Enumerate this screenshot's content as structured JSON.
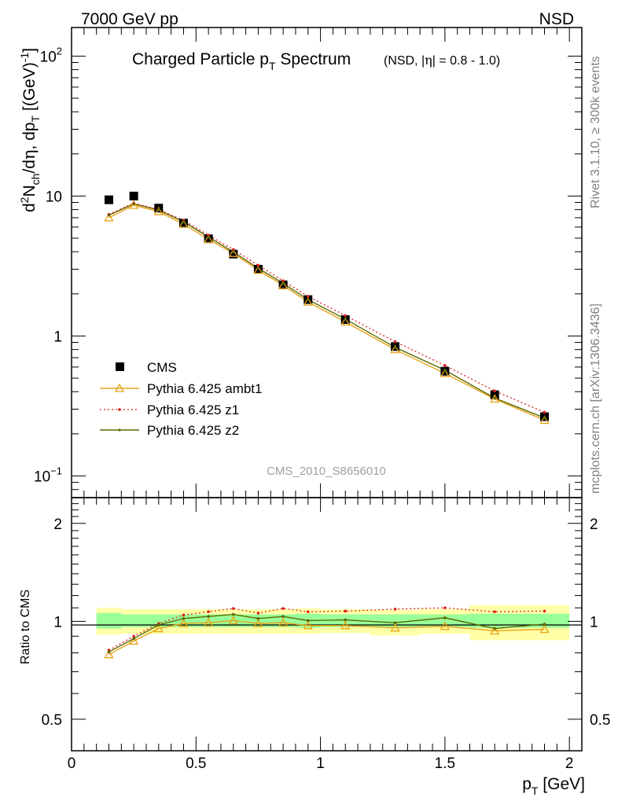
{
  "header": {
    "left": "7000 GeV pp",
    "right": "NSD"
  },
  "title": {
    "main_a": "Charged Particle p",
    "main_sub": "T",
    "main_b": " Spectrum",
    "qual_a": "(NSD, |",
    "qual_eta": "η",
    "qual_b": "| = 0.8 - 1.0)"
  },
  "side": {
    "rivet": "Rivet 3.1.10, ≥ 300k events",
    "mcplots": "mcplots.cern.ch [arXiv:1306.3436]"
  },
  "watermark": "CMS_2010_S8656010",
  "axes": {
    "ylabel": "d²N_ch/dη dp_T [(GeV)⁻¹]",
    "xlabel": "p_T [GeV]",
    "ratio_ylabel": "Ratio to CMS",
    "main_yticks": [
      {
        "value": 100,
        "mant": "10",
        "exp": "2"
      },
      {
        "value": 10,
        "mant": "10",
        "exp": ""
      },
      {
        "value": 1,
        "mant": "1",
        "exp": ""
      },
      {
        "value": 0.1,
        "mant": "10",
        "exp": "−1"
      }
    ],
    "xticks": [
      "0",
      "0.5",
      "1",
      "1.5",
      "2"
    ],
    "ratio_yticks": [
      "0.5",
      "1",
      "2"
    ]
  },
  "chart_data": {
    "type": "line",
    "x": [
      0.15,
      0.25,
      0.35,
      0.45,
      0.55,
      0.65,
      0.75,
      0.85,
      0.95,
      1.1,
      1.3,
      1.5,
      1.7,
      1.9
    ],
    "xlim": [
      0,
      2.05
    ],
    "ylim": [
      0.07,
      160
    ],
    "ylog": true,
    "ratio_ylim": [
      0.4,
      2.4
    ],
    "ratio_ylog": true,
    "series": [
      {
        "name": "CMS",
        "style": "data",
        "color": "#000000",
        "values": [
          9.4,
          10.0,
          8.2,
          6.4,
          4.95,
          3.85,
          3.0,
          2.32,
          1.82,
          1.31,
          0.84,
          0.56,
          0.38,
          0.265
        ]
      },
      {
        "name": "Pythia 6.425 ambt1",
        "style": "ambt1",
        "color": "#e8a317",
        "values": [
          7.0,
          8.6,
          7.75,
          6.3,
          4.9,
          3.9,
          2.95,
          2.3,
          1.75,
          1.26,
          0.8,
          0.54,
          0.355,
          0.25
        ]
      },
      {
        "name": "Pythia 6.425 z1",
        "style": "z1",
        "color": "#e02020",
        "values": [
          7.4,
          8.9,
          8.0,
          6.7,
          5.25,
          4.15,
          3.2,
          2.48,
          1.92,
          1.4,
          0.91,
          0.615,
          0.405,
          0.285
        ]
      },
      {
        "name": "Pythia 6.425 z2",
        "style": "z2",
        "color": "#5a6a00",
        "values": [
          7.3,
          8.8,
          7.95,
          6.55,
          5.1,
          3.98,
          3.05,
          2.38,
          1.82,
          1.32,
          0.83,
          0.57,
          0.36,
          0.26
        ]
      }
    ],
    "ratios": [
      {
        "name": "Pythia 6.425 ambt1",
        "values": [
          0.79,
          0.87,
          0.95,
          0.985,
          0.99,
          1.005,
          0.985,
          0.99,
          0.97,
          0.97,
          0.955,
          0.965,
          0.935,
          0.945
        ]
      },
      {
        "name": "Pythia 6.425 z1",
        "values": [
          0.815,
          0.9,
          0.985,
          1.045,
          1.07,
          1.095,
          1.06,
          1.095,
          1.07,
          1.075,
          1.09,
          1.1,
          1.07,
          1.075
        ]
      },
      {
        "name": "Pythia 6.425 z2",
        "values": [
          0.805,
          0.885,
          0.975,
          1.02,
          1.035,
          1.05,
          1.02,
          1.035,
          1.005,
          1.01,
          0.99,
          1.025,
          0.95,
          0.98
        ]
      }
    ],
    "bands": [
      {
        "x0": 0.1,
        "x1": 0.2,
        "inner": [
          0.95,
          1.06
        ],
        "outer": [
          0.91,
          1.1
        ]
      },
      {
        "x0": 0.2,
        "x1": 0.9,
        "inner": [
          0.96,
          1.05
        ],
        "outer": [
          0.915,
          1.09
        ]
      },
      {
        "x0": 0.9,
        "x1": 1.0,
        "inner": [
          0.955,
          1.055
        ],
        "outer": [
          0.915,
          1.095
        ]
      },
      {
        "x0": 1.0,
        "x1": 1.2,
        "inner": [
          0.96,
          1.05
        ],
        "outer": [
          0.92,
          1.09
        ]
      },
      {
        "x0": 1.2,
        "x1": 1.4,
        "inner": [
          0.96,
          1.05
        ],
        "outer": [
          0.905,
          1.085
        ]
      },
      {
        "x0": 1.4,
        "x1": 1.6,
        "inner": [
          0.96,
          1.05
        ],
        "outer": [
          0.915,
          1.09
        ]
      },
      {
        "x0": 1.6,
        "x1": 2.0,
        "inner": [
          0.955,
          1.055
        ],
        "outer": [
          0.875,
          1.12
        ]
      }
    ],
    "legend": [
      "CMS",
      "Pythia 6.425 ambt1",
      "Pythia 6.425 z1",
      "Pythia 6.425 z2"
    ],
    "legend_position": "bottom-left"
  }
}
